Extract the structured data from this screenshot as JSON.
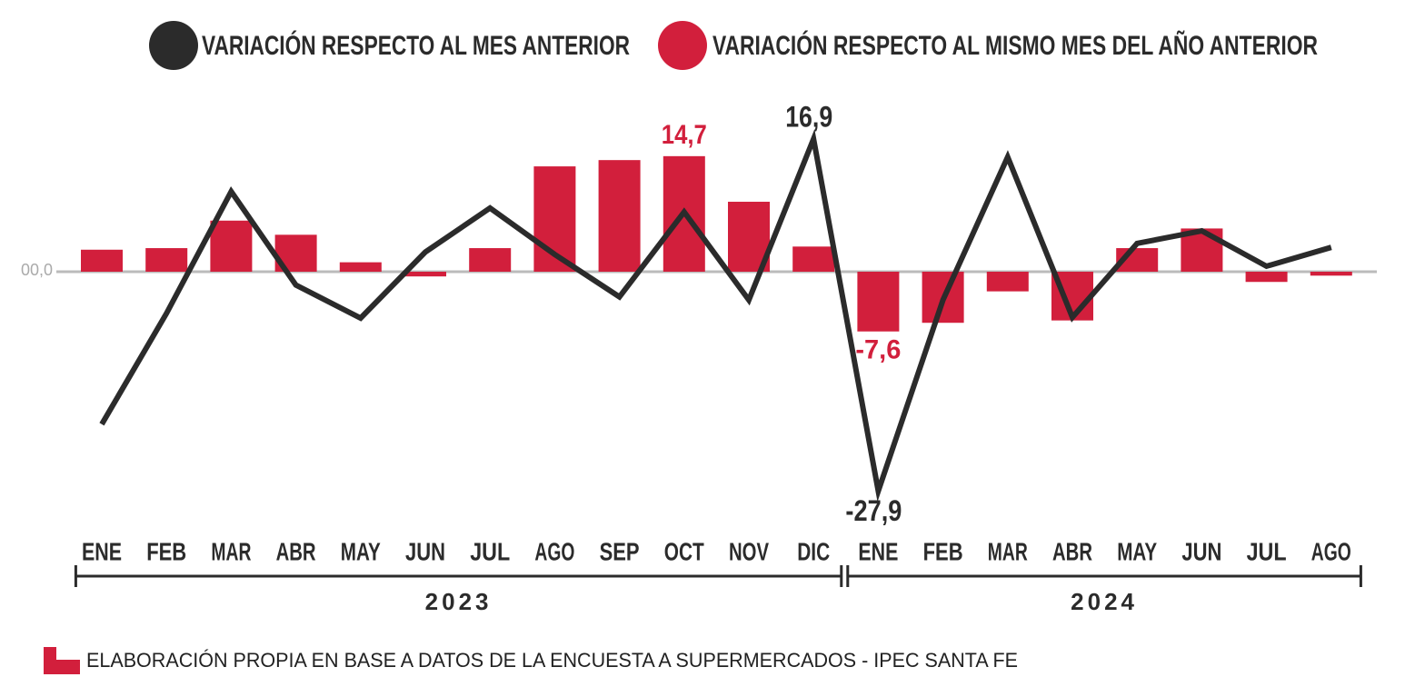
{
  "chart_data": {
    "type": "bar_line",
    "categories": [
      "ENE",
      "FEB",
      "MAR",
      "ABR",
      "MAY",
      "JUN",
      "JUL",
      "AGO",
      "SEP",
      "OCT",
      "NOV",
      "DIC",
      "ENE",
      "FEB",
      "MAR",
      "ABR",
      "MAY",
      "JUN",
      "JUL",
      "AGO"
    ],
    "category_groups": [
      {
        "name": "2023",
        "count": 12
      },
      {
        "name": "2024",
        "count": 8
      }
    ],
    "series": [
      {
        "name": "VARIACIÓN RESPECTO AL MES ANTERIOR",
        "type": "line",
        "color": "#2b2b2b",
        "values": [
          -19.4,
          -5.3,
          10.2,
          -1.7,
          -5.9,
          2.5,
          8.1,
          2.2,
          -3.2,
          7.6,
          -3.6,
          16.9,
          -27.9,
          -3.6,
          14.6,
          -5.8,
          3.6,
          5.2,
          0.7,
          3.1
        ],
        "value_labels": [
          null,
          null,
          null,
          null,
          null,
          null,
          null,
          null,
          null,
          null,
          null,
          "16,9",
          "-27,9",
          null,
          null,
          null,
          null,
          null,
          null,
          null
        ]
      },
      {
        "name": "VARIACIÓN RESPECTO AL MISMO MES DEL AÑO ANTERIOR",
        "type": "bar",
        "color": "#d21f3c",
        "values": [
          2.8,
          3.0,
          6.5,
          4.7,
          1.2,
          -0.6,
          3.0,
          13.4,
          14.2,
          14.7,
          8.9,
          3.2,
          -7.6,
          -6.5,
          -2.5,
          -6.2,
          3.0,
          5.5,
          -1.3,
          -0.5
        ],
        "value_labels": [
          null,
          null,
          null,
          null,
          null,
          null,
          null,
          null,
          null,
          "14,7",
          null,
          null,
          "-7,6",
          null,
          null,
          null,
          null,
          null,
          null,
          null
        ]
      }
    ],
    "ylim": [
      -30,
      20
    ],
    "yticks": [
      {
        "value": 0,
        "label": "00,0"
      }
    ],
    "legend": "top",
    "source": "ELABORACIÓN PROPIA EN BASE A DATOS DE LA ENCUESTA A SUPERMERCADOS - IPEC SANTA FE"
  }
}
